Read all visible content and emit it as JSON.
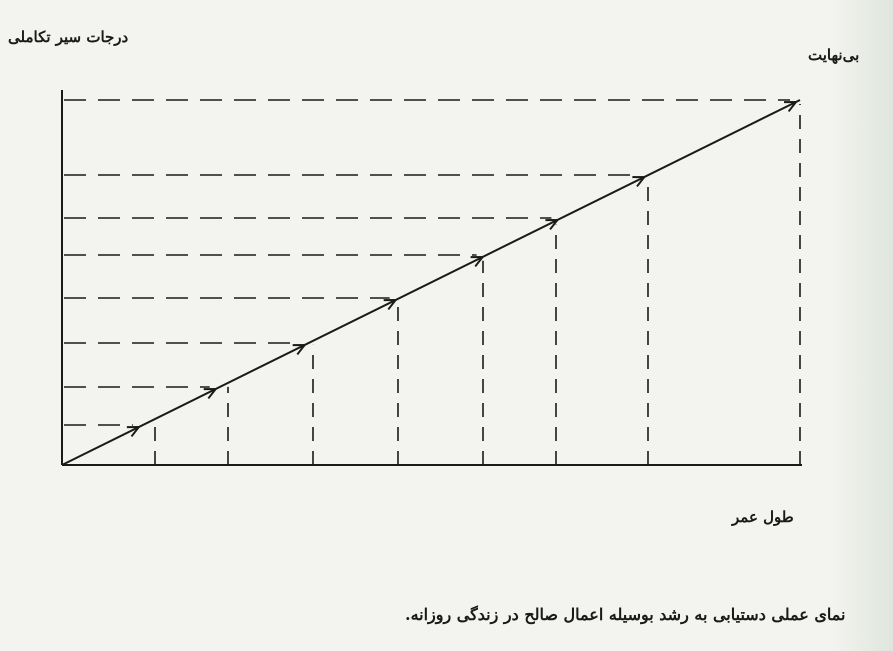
{
  "labels": {
    "y_axis": "درجات سیر تکاملی",
    "infinity": "بی‌نهایت",
    "x_axis": "طول عمر"
  },
  "caption": "نمای عملی دستیابی به رشد بوسیله اعمال صالح در زندگی روزانه.",
  "colors": {
    "ink": "#1a1a1a",
    "paper": "#f3f3ef"
  }
}
